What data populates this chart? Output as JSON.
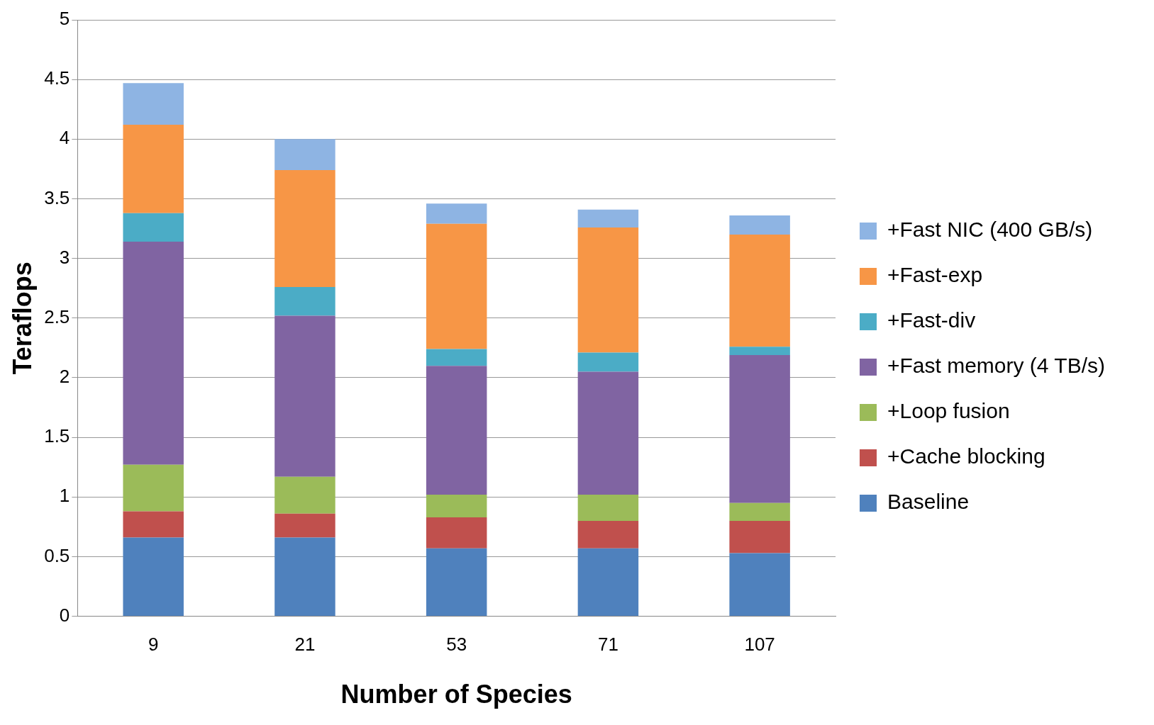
{
  "chart_data": {
    "type": "bar",
    "stacked": true,
    "xlabel": "Number of Species",
    "ylabel": "Teraflops",
    "categories": [
      "9",
      "21",
      "53",
      "71",
      "107"
    ],
    "series": [
      {
        "name": "Baseline",
        "color": "#4f81bd",
        "values": [
          0.66,
          0.66,
          0.57,
          0.57,
          0.53
        ]
      },
      {
        "name": "+Cache blocking",
        "color": "#c0504d",
        "values": [
          0.22,
          0.2,
          0.26,
          0.23,
          0.27
        ]
      },
      {
        "name": "+Loop fusion",
        "color": "#9bbb59",
        "values": [
          0.39,
          0.31,
          0.19,
          0.22,
          0.15
        ]
      },
      {
        "name": "+Fast memory (4 TB/s)",
        "color": "#8064a2",
        "values": [
          1.87,
          1.35,
          1.08,
          1.03,
          1.24
        ]
      },
      {
        "name": "+Fast-div",
        "color": "#4bacc6",
        "values": [
          0.24,
          0.24,
          0.14,
          0.16,
          0.07
        ]
      },
      {
        "name": "+Fast-exp",
        "color": "#f79646",
        "values": [
          0.74,
          0.98,
          1.05,
          1.05,
          0.94
        ]
      },
      {
        "name": "+Fast NIC (400 GB/s)",
        "color": "#8eb4e3",
        "values": [
          0.35,
          0.26,
          0.17,
          0.15,
          0.16
        ]
      }
    ],
    "ylim": [
      0,
      5
    ],
    "yticks": [
      0,
      0.5,
      1,
      1.5,
      2,
      2.5,
      3,
      3.5,
      4,
      4.5,
      5
    ],
    "grid": "y",
    "legend": "right"
  }
}
